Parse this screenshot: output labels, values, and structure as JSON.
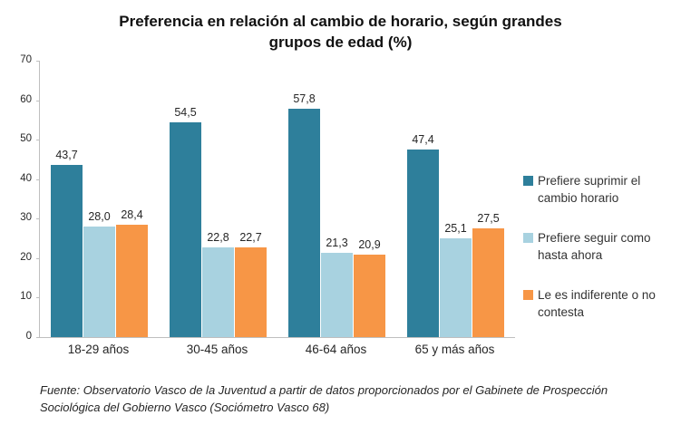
{
  "header": {
    "title_lines": [
      "Preferencia en relación al cambio de horario, según grandes",
      "grupos de edad (%)"
    ]
  },
  "source_note": "Fuente: Observatorio Vasco de la Juventud a partir de datos proporcionados por el Gabinete de Prospección Sociológica del Gobierno Vasco (Sociómetro Vasco 68)",
  "chart_data": {
    "type": "bar",
    "title": "Preferencia en relación al cambio de horario, según grandes grupos de edad (%)",
    "categories": [
      "18-29 años",
      "30-45 años",
      "46-64 años",
      "65 y más años"
    ],
    "series": [
      {
        "name": "Prefiere suprimir el cambio horario",
        "color": "#2E7F9B",
        "values": [
          43.7,
          54.5,
          57.8,
          47.4
        ]
      },
      {
        "name": "Prefiere seguir como hasta ahora",
        "color": "#A8D2E0",
        "values": [
          28.0,
          22.8,
          21.3,
          25.1
        ]
      },
      {
        "name": "Le es indiferente o no contesta",
        "color": "#F79646",
        "values": [
          28.4,
          22.7,
          20.9,
          27.5
        ]
      }
    ],
    "data_labels": {
      "18-29 años": [
        "43,7",
        "28,0",
        "28,4"
      ],
      "30-45 años": [
        "54,5",
        "22,8",
        "22,7"
      ],
      "46-64 años": [
        "57,8",
        "21,3",
        "20,9"
      ],
      "65 y más años": [
        "47,4",
        "25,1",
        "27,5"
      ]
    },
    "xlabel": "",
    "ylabel": "",
    "ylim": [
      0,
      70
    ],
    "yticks": [
      0,
      10,
      20,
      30,
      40,
      50,
      60,
      70
    ],
    "grid": false,
    "legend_position": "right",
    "axis_color": "#BFBFBF",
    "decimal_separator": ","
  }
}
